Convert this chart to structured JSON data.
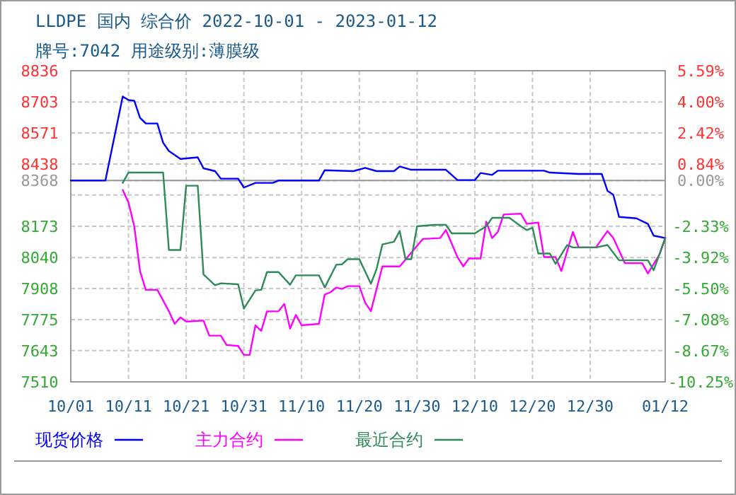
{
  "chart_data": {
    "type": "line",
    "title": "LLDPE 国内 综合价 2022-10-01 - 2023-01-12",
    "subtitle": "牌号:7042 用途级别:薄膜级",
    "xlim": [
      "2022-10-01",
      "2023-01-12"
    ],
    "xticks": [
      {
        "value": "2022-10-01",
        "label": "10/01"
      },
      {
        "value": "2022-10-11",
        "label": "10/11"
      },
      {
        "value": "2022-10-21",
        "label": "10/21"
      },
      {
        "value": "2022-10-31",
        "label": "10/31"
      },
      {
        "value": "2022-11-10",
        "label": "11/10"
      },
      {
        "value": "2022-11-20",
        "label": "11/20"
      },
      {
        "value": "2022-11-30",
        "label": "11/30"
      },
      {
        "value": "2022-12-10",
        "label": "12/10"
      },
      {
        "value": "2022-12-20",
        "label": "12/20"
      },
      {
        "value": "2022-12-30",
        "label": "12/30"
      },
      {
        "value": "2023-01-12",
        "label": "01/12"
      }
    ],
    "ylim": [
      7510,
      8836
    ],
    "yticks": [
      7510,
      7643,
      7775,
      7908,
      8040,
      8173,
      {
        "value": 8306,
        "label": null
      },
      8368,
      8438,
      8571,
      8703,
      8836
    ],
    "y2lim": [
      -10.25,
      5.59
    ],
    "y2ticks": [
      {
        "value": -10.25,
        "label": "-10.25%"
      },
      {
        "value": -8.67,
        "label": "-8.67%"
      },
      {
        "value": -7.08,
        "label": "-7.08%"
      },
      {
        "value": -5.5,
        "label": "-5.50%"
      },
      {
        "value": -3.92,
        "label": "-3.92%"
      },
      {
        "value": -2.33,
        "label": "-2.33%"
      },
      {
        "value": 0,
        "label": "0.00%"
      },
      {
        "value": 0.84,
        "label": "0.84%"
      },
      {
        "value": 2.42,
        "label": "2.42%"
      },
      {
        "value": 4,
        "label": "4.00%"
      },
      {
        "value": 5.59,
        "label": "5.59%"
      }
    ],
    "ref_lines": [
      {
        "axis": "y",
        "value": 8368,
        "color": "#999999",
        "line_style": "solid"
      }
    ],
    "grid": true,
    "legend": "bottom",
    "marker": "none",
    "line_style": "solid",
    "series": [
      {
        "name": "现货价格",
        "color": "#0000ff",
        "x": [
          "2022-10-01",
          "2022-10-07",
          "2022-10-10",
          "2022-10-11",
          "2022-10-12",
          "2022-10-13",
          "2022-10-14",
          "2022-10-16",
          "2022-10-17",
          "2022-10-18",
          "2022-10-20",
          "2022-10-23",
          "2022-10-24",
          "2022-10-26",
          "2022-10-27",
          "2022-10-30",
          "2022-10-31",
          "2022-11-02",
          "2022-11-05",
          "2022-11-06",
          "2022-11-13",
          "2022-11-14",
          "2022-11-19",
          "2022-11-21",
          "2022-11-23",
          "2022-11-26",
          "2022-11-27",
          "2022-11-29",
          "2022-12-05",
          "2022-12-07",
          "2022-12-10",
          "2022-12-11",
          "2022-12-13",
          "2022-12-14",
          "2022-12-22",
          "2022-12-23",
          "2022-12-28",
          "2023-01-01",
          "2023-01-02",
          "2023-01-03",
          "2023-01-04",
          "2023-01-07",
          "2023-01-09",
          "2023-01-10",
          "2023-01-12"
        ],
        "values": [
          8368,
          8368,
          8726,
          8711,
          8708,
          8635,
          8611,
          8611,
          8529,
          8494,
          8460,
          8467,
          8420,
          8408,
          8376,
          8376,
          8338,
          8358,
          8358,
          8368,
          8368,
          8412,
          8408,
          8422,
          8408,
          8408,
          8428,
          8414,
          8414,
          8370,
          8370,
          8400,
          8392,
          8410,
          8410,
          8402,
          8396,
          8396,
          8324,
          8308,
          8213,
          8207,
          8183,
          8133,
          8123
        ]
      },
      {
        "name": "主力合约",
        "color": "#ff00ff",
        "x": [
          "2022-10-10",
          "2022-10-11",
          "2022-10-12",
          "2022-10-13",
          "2022-10-14",
          "2022-10-16",
          "2022-10-18",
          "2022-10-19",
          "2022-10-20",
          "2022-10-21",
          "2022-10-24",
          "2022-10-25",
          "2022-10-27",
          "2022-10-28",
          "2022-10-30",
          "2022-10-31",
          "2022-11-01",
          "2022-11-02",
          "2022-11-03",
          "2022-11-04",
          "2022-11-06",
          "2022-11-07",
          "2022-11-08",
          "2022-11-09",
          "2022-11-10",
          "2022-11-13",
          "2022-11-14",
          "2022-11-15",
          "2022-11-16",
          "2022-11-17",
          "2022-11-18",
          "2022-11-20",
          "2022-11-21",
          "2022-11-22",
          "2022-11-24",
          "2022-11-27",
          "2022-12-01",
          "2022-12-04",
          "2022-12-05",
          "2022-12-07",
          "2022-12-08",
          "2022-12-09",
          "2022-12-11",
          "2022-12-12",
          "2022-12-13",
          "2022-12-14",
          "2022-12-15",
          "2022-12-18",
          "2022-12-19",
          "2022-12-21",
          "2022-12-22",
          "2022-12-24",
          "2022-12-25",
          "2022-12-27",
          "2022-12-28",
          "2022-12-31",
          "2023-01-02",
          "2023-01-03",
          "2023-01-05",
          "2023-01-08",
          "2023-01-09",
          "2023-01-11",
          "2023-01-12"
        ],
        "values": [
          8328,
          8274,
          8173,
          7982,
          7902,
          7902,
          7811,
          7757,
          7785,
          7767,
          7771,
          7707,
          7707,
          7667,
          7663,
          7625,
          7625,
          7751,
          7727,
          7810,
          7811,
          7842,
          7737,
          7795,
          7751,
          7757,
          7882,
          7892,
          7912,
          7906,
          7918,
          7918,
          7848,
          7811,
          8002,
          8002,
          8119,
          8123,
          8157,
          8042,
          8002,
          8036,
          8036,
          8193,
          8123,
          8149,
          8223,
          8227,
          8183,
          8189,
          8042,
          8042,
          7982,
          8149,
          8083,
          8083,
          8153,
          8123,
          8016,
          8016,
          7972,
          8052,
          8123
        ]
      },
      {
        "name": "最近合约",
        "color": "#2e8b57",
        "x": [
          "2022-10-10",
          "2022-10-11",
          "2022-10-17",
          "2022-10-18",
          "2022-10-20",
          "2022-10-21",
          "2022-10-23",
          "2022-10-24",
          "2022-10-26",
          "2022-10-27",
          "2022-10-30",
          "2022-10-31",
          "2022-11-02",
          "2022-11-03",
          "2022-11-04",
          "2022-11-06",
          "2022-11-08",
          "2022-11-09",
          "2022-11-13",
          "2022-11-14",
          "2022-11-16",
          "2022-11-17",
          "2022-11-18",
          "2022-11-20",
          "2022-11-22",
          "2022-11-23",
          "2022-11-24",
          "2022-11-26",
          "2022-11-27",
          "2022-11-28",
          "2022-11-29",
          "2022-11-30",
          "2022-12-03",
          "2022-12-05",
          "2022-12-06",
          "2022-12-10",
          "2022-12-12",
          "2022-12-13",
          "2022-12-16",
          "2022-12-18",
          "2022-12-19",
          "2022-12-20",
          "2022-12-21",
          "2022-12-23",
          "2022-12-24",
          "2022-12-26",
          "2022-12-27",
          "2022-12-31",
          "2023-01-02",
          "2023-01-04",
          "2023-01-09",
          "2023-01-10",
          "2023-01-12"
        ],
        "values": [
          8358,
          8402,
          8402,
          8072,
          8072,
          8346,
          8346,
          7968,
          7922,
          7930,
          7926,
          7822,
          7900,
          7902,
          7978,
          7978,
          7924,
          7964,
          7964,
          7912,
          8009,
          8011,
          8033,
          8033,
          7928,
          7992,
          8096,
          8107,
          8153,
          8033,
          8033,
          8173,
          8179,
          8179,
          8143,
          8143,
          8173,
          8209,
          8209,
          8173,
          8157,
          8167,
          8057,
          8057,
          8013,
          8093,
          8083,
          8083,
          8093,
          8028,
          8028,
          7986,
          8123
        ]
      }
    ]
  }
}
